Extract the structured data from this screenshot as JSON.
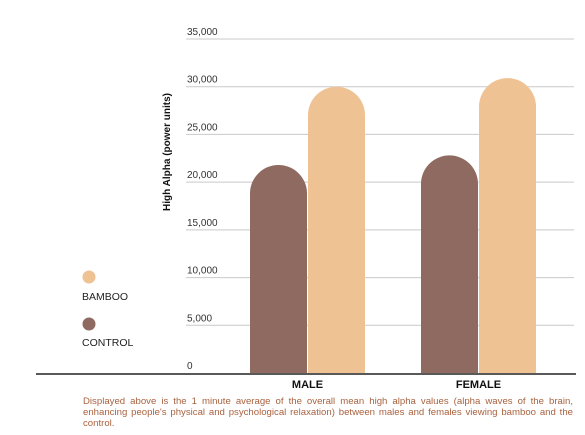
{
  "chart_data": {
    "type": "bar",
    "categories": [
      "MALE",
      "FEMALE"
    ],
    "series": [
      {
        "name": "CONTROL",
        "color": "#8f6a61",
        "values": [
          21800,
          22800
        ]
      },
      {
        "name": "BAMBOO",
        "color": "#efc293",
        "values": [
          30000,
          30900
        ]
      }
    ],
    "ylabel": "High Alpha (power units)",
    "xlabel": "",
    "ylim": [
      0,
      35000
    ],
    "yticks": [
      0,
      5000,
      10000,
      15000,
      20000,
      25000,
      30000,
      35000
    ],
    "ytick_labels": [
      "0",
      "5,000",
      "10,000",
      "15,000",
      "20,000",
      "25,000",
      "30,000",
      "35,000"
    ],
    "grid": true,
    "legend_position": "left",
    "legend_order": [
      "BAMBOO",
      "CONTROL"
    ]
  },
  "caption": "Displayed above is the 1 minute average of the overall mean high alpha values (alpha waves of the brain, enhancing people's physical and psychological relaxation) between males and females viewing bamboo and the control."
}
